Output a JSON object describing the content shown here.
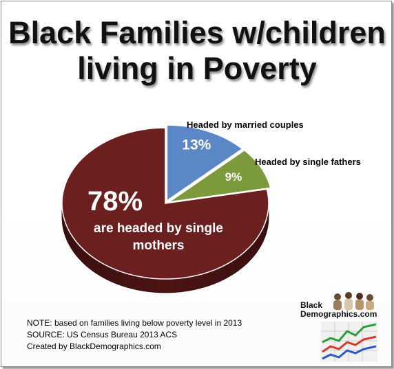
{
  "chart_data": {
    "type": "pie",
    "title_lines": [
      "Black Families w/children",
      "living in Poverty"
    ],
    "slices": [
      {
        "name": "Headed by married couples",
        "value": 13,
        "label": "13%",
        "color": "#5b87c6"
      },
      {
        "name": "Headed by single fathers",
        "value": 9,
        "label": "9%",
        "color": "#7a9a3c"
      },
      {
        "name": "are headed by single mothers",
        "value": 78,
        "label": "78%",
        "color": "#6b1f1f"
      }
    ],
    "big_label": "78%",
    "big_sub_lines": [
      "are headed by single",
      "mothers"
    ],
    "callouts": {
      "married": "Headed by married couples",
      "fathers": "Headed by single fathers"
    }
  },
  "notes": [
    "NOTE: based on families living below poverty level in 2013",
    "SOURCE:  US Census  Bureau 2013 ACS",
    "Created by BlackDemographics.com"
  ],
  "logo": {
    "line1": "Black",
    "line2": "Demographics.com"
  }
}
